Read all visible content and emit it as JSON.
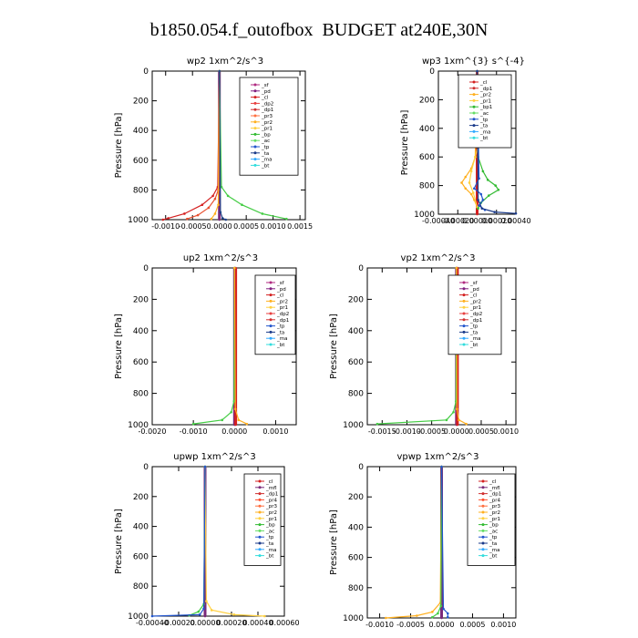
{
  "title": "b1850.054.f_outofbox  BUDGET at240E,30N",
  "chart_data": [
    {
      "type": "line",
      "title": "wp2   1xm^2/s^3",
      "ylabel": "Pressure [hPa]",
      "xlim": [
        -0.00125,
        0.0016
      ],
      "ylim": [
        1000,
        0
      ],
      "xticks": [
        -0.001,
        -0.0005,
        0,
        0.0005,
        0.001,
        0.0015
      ],
      "xticklabels": [
        "-0.0010",
        "-0.0005",
        "0.0000",
        "0.0005",
        "0.0010",
        "0.0015"
      ],
      "yticks": [
        0,
        200,
        400,
        600,
        800,
        1000
      ],
      "yticklabels": [
        "0",
        "200",
        "400",
        "600",
        "800",
        "1000"
      ],
      "legend": [
        "_sf",
        "_pd",
        "_cl",
        "_dp2",
        "_dp1",
        "_pr3",
        "_pr2",
        "_pr1",
        "_bp",
        "_ac",
        "_tp",
        "_ta",
        "_ma",
        "_bt"
      ],
      "series": [
        {
          "name": "_sf",
          "color": "#7a2a7a",
          "p": [
            0,
            1000
          ],
          "v": [
            0,
            0
          ]
        },
        {
          "name": "_cl",
          "color": "#d42020",
          "p": [
            0,
            780,
            840,
            900,
            960,
            990,
            1000
          ],
          "v": [
            0,
            -3e-05,
            -0.00012,
            -0.00032,
            -0.00065,
            -0.00095,
            -0.00105
          ]
        },
        {
          "name": "_dp2",
          "color": "#e85030",
          "p": [
            0,
            800,
            860,
            920,
            970,
            995
          ],
          "v": [
            0,
            -2e-05,
            -8e-05,
            -0.0002,
            -0.0004,
            -0.0006
          ]
        },
        {
          "name": "_pr1",
          "color": "#ffb020",
          "p": [
            0,
            900,
            960,
            995
          ],
          "v": [
            0,
            -2e-05,
            -8e-05,
            -0.00015
          ]
        },
        {
          "name": "_bp",
          "color": "#44cc44",
          "p": [
            0,
            780,
            840,
            900,
            960,
            995
          ],
          "v": [
            0,
            4e-05,
            0.00016,
            0.00042,
            0.0008,
            0.00125
          ]
        },
        {
          "name": "_ta",
          "color": "#224488",
          "p": [
            0,
            950,
            990,
            1000
          ],
          "v": [
            0,
            2e-05,
            6e-05,
            0.00012
          ]
        }
      ]
    },
    {
      "type": "line",
      "title": "wp3   1xm^{3} s^{-4}",
      "ylabel": "Pressure [hPa]",
      "xlim": [
        -0.0004,
        0.0004
      ],
      "ylim": [
        1000,
        0
      ],
      "xticks": [
        -0.0004,
        -0.0002,
        0,
        0.0002,
        0.0004
      ],
      "xticklabels": [
        "-0.00040",
        "-0.00020",
        "0.00000",
        "0.00020",
        "0.00040"
      ],
      "yticks": [
        0,
        200,
        400,
        600,
        800,
        1000
      ],
      "yticklabels": [
        "0",
        "200",
        "400",
        "600",
        "800",
        "1000"
      ],
      "legend": [
        "_cl",
        "_dp1",
        "_pr2",
        "_pr1",
        "_bp1",
        "_ac",
        "_tp",
        "_ta",
        "_ma",
        "_bt"
      ],
      "series": [
        {
          "name": "_cl",
          "color": "#d42020",
          "p": [
            0,
            1000
          ],
          "v": [
            0,
            0
          ]
        },
        {
          "name": "_pr1",
          "color": "#ffb020",
          "p": [
            0,
            600,
            680,
            740,
            780,
            820,
            860,
            900,
            950
          ],
          "v": [
            0,
            -2e-05,
            -6e-05,
            -0.00012,
            -0.00016,
            -0.00012,
            -6e-05,
            -3e-05,
            0
          ]
        },
        {
          "name": "_pr2",
          "color": "#ffd040",
          "p": [
            0,
            300,
            400,
            500,
            600,
            700,
            780,
            850,
            950
          ],
          "v": [
            0,
            2e-05,
            3e-05,
            2e-05,
            -2e-05,
            -6e-05,
            -8e-05,
            -4e-05,
            0
          ]
        },
        {
          "name": "_bp1",
          "color": "#33bb33",
          "p": [
            0,
            600,
            700,
            760,
            800,
            830,
            870,
            920,
            960
          ],
          "v": [
            0,
            1e-05,
            6e-05,
            0.00011,
            0.00019,
            0.00022,
            0.00012,
            4e-05,
            1e-05
          ]
        },
        {
          "name": "_tp",
          "color": "#2255cc",
          "p": [
            0,
            750,
            820,
            860,
            900,
            940,
            970
          ],
          "v": [
            0,
            2e-05,
            -3e-05,
            4e-05,
            6e-05,
            2e-05,
            8e-05
          ]
        },
        {
          "name": "_ta",
          "color": "#1a3a8a",
          "p": [
            0,
            900,
            960,
            985,
            995
          ],
          "v": [
            0,
            1e-05,
            5e-05,
            0.00018,
            0.0004
          ]
        }
      ]
    },
    {
      "type": "line",
      "title": "up2   1xm^2/s^3",
      "ylabel": "Pressure [hPa]",
      "xlim": [
        -0.002,
        0.0015
      ],
      "ylim": [
        1000,
        0
      ],
      "xticks": [
        -0.002,
        -0.001,
        0,
        0.001
      ],
      "xticklabels": [
        "-0.0020",
        "-0.0010",
        "0.0000",
        "0.0010"
      ],
      "yticks": [
        0,
        200,
        400,
        600,
        800,
        1000
      ],
      "yticklabels": [
        "0",
        "200",
        "400",
        "600",
        "800",
        "1000"
      ],
      "legend": [
        "_sf",
        "_pd",
        "_cl",
        "_pr2",
        "_pr1",
        "_dp2",
        "_dp1",
        "_tp",
        "_ta",
        "_ma",
        "_bt"
      ],
      "series": [
        {
          "name": "_sf",
          "color": "#7a2a7a",
          "p": [
            0,
            1000
          ],
          "v": [
            0,
            0
          ]
        },
        {
          "name": "_pd",
          "color": "#d42020",
          "p": [
            0,
            1000
          ],
          "v": [
            3e-05,
            3e-05
          ]
        },
        {
          "name": "_dp2",
          "color": "#44cc44",
          "p": [
            0,
            850,
            920,
            970,
            995
          ],
          "v": [
            0,
            -1e-05,
            -8e-05,
            -0.0003,
            -0.001
          ]
        },
        {
          "name": "_pr1",
          "color": "#ffb020",
          "p": [
            0,
            900,
            970,
            995
          ],
          "v": [
            0,
            2e-05,
            0.0001,
            0.0003
          ]
        }
      ]
    },
    {
      "type": "line",
      "title": "vp2   1xm^2/s^3",
      "ylabel": "Pressure [hPa]",
      "xlim": [
        -0.0018,
        0.0012
      ],
      "ylim": [
        1000,
        0
      ],
      "xticks": [
        -0.0015,
        -0.001,
        -0.0005,
        0,
        0.0005,
        0.001
      ],
      "xticklabels": [
        "-0.0015",
        "-0.0010",
        "-0.0005",
        "0.0000",
        "0.0005",
        "0.0010"
      ],
      "yticks": [
        0,
        200,
        400,
        600,
        800,
        1000
      ],
      "yticklabels": [
        "0",
        "200",
        "400",
        "600",
        "800",
        "1000"
      ],
      "legend": [
        "_sf",
        "_pd",
        "_cl",
        "_pr2",
        "_pr1",
        "_dp2",
        "_dp1",
        "_tp",
        "_ta",
        "_ma",
        "_bt"
      ],
      "series": [
        {
          "name": "_sf",
          "color": "#7a2a7a",
          "p": [
            0,
            1000
          ],
          "v": [
            0,
            0
          ]
        },
        {
          "name": "_pd",
          "color": "#d42020",
          "p": [
            0,
            1000
          ],
          "v": [
            2e-05,
            2e-05
          ]
        },
        {
          "name": "_dp2",
          "color": "#44cc44",
          "p": [
            0,
            850,
            920,
            970,
            995
          ],
          "v": [
            0,
            -1e-05,
            -6e-05,
            -0.0002,
            -0.0016
          ]
        },
        {
          "name": "_pr1",
          "color": "#ffb020",
          "p": [
            0,
            900,
            970,
            995
          ],
          "v": [
            0,
            1e-05,
            5e-05,
            0.0002
          ]
        }
      ]
    },
    {
      "type": "line",
      "title": "upwp   1xm^2/s^3",
      "ylabel": "Pressure [hPa]",
      "xlim": [
        -0.0004,
        0.0006
      ],
      "ylim": [
        1000,
        0
      ],
      "xticks": [
        -0.0004,
        -0.0002,
        0,
        0.0002,
        0.0004,
        0.0006
      ],
      "xticklabels": [
        "-0.00040",
        "-0.00020",
        "0.00000",
        "0.00020",
        "0.00040",
        "0.00060"
      ],
      "yticks": [
        0,
        200,
        400,
        600,
        800,
        1000
      ],
      "yticklabels": [
        "0",
        "200",
        "400",
        "600",
        "800",
        "1000"
      ],
      "legend": [
        "_cl",
        "_mfl",
        "_dp1",
        "_pr4",
        "_pr3",
        "_pr2",
        "_pr1",
        "_bp",
        "_ac",
        "_tp",
        "_ta",
        "_ma",
        "_bt"
      ],
      "series": [
        {
          "name": "_cl",
          "color": "#7a2a7a",
          "p": [
            0,
            1000
          ],
          "v": [
            0,
            0
          ]
        },
        {
          "name": "_pr1",
          "color": "#ffd040",
          "p": [
            0,
            900,
            960,
            990,
            1000
          ],
          "v": [
            0,
            1e-05,
            5e-05,
            0.00022,
            0.00045
          ]
        },
        {
          "name": "_bp",
          "color": "#44cc44",
          "p": [
            0,
            920,
            970,
            995
          ],
          "v": [
            0,
            -1e-05,
            -5e-05,
            -0.00012
          ]
        },
        {
          "name": "_tp",
          "color": "#2255cc",
          "p": [
            0,
            950,
            990,
            1000
          ],
          "v": [
            0,
            -1e-05,
            -4e-05,
            -0.0004
          ]
        }
      ]
    },
    {
      "type": "line",
      "title": "vpwp   1xm^2/s^3",
      "ylabel": "Pressure [hPa]",
      "xlim": [
        -0.0012,
        0.0012
      ],
      "ylim": [
        1000,
        0
      ],
      "xticks": [
        -0.001,
        -0.0005,
        0,
        0.0005,
        0.001
      ],
      "xticklabels": [
        "-0.0010",
        "-0.0005",
        "0.0000",
        "0.0005",
        "0.0010"
      ],
      "yticks": [
        0,
        200,
        400,
        600,
        800,
        1000
      ],
      "yticklabels": [
        "0",
        "200",
        "400",
        "600",
        "800",
        "1000"
      ],
      "legend": [
        "_cl",
        "_mfl",
        "_dp1",
        "_pr4",
        "_pr3",
        "_pr2",
        "_pr1",
        "_bp",
        "_ac",
        "_tp",
        "_ta",
        "_ma",
        "_bt"
      ],
      "series": [
        {
          "name": "_cl",
          "color": "#7a2a7a",
          "p": [
            0,
            1000
          ],
          "v": [
            0,
            0
          ]
        },
        {
          "name": "_pr1",
          "color": "#ffb020",
          "p": [
            0,
            900,
            960,
            985,
            1000
          ],
          "v": [
            0,
            -2e-05,
            -0.00015,
            -0.0004,
            -0.0009
          ]
        },
        {
          "name": "_bp",
          "color": "#44cc44",
          "p": [
            0,
            920,
            970,
            995
          ],
          "v": [
            0,
            -1e-05,
            -6e-05,
            -0.00015
          ]
        },
        {
          "name": "_tp",
          "color": "#2255cc",
          "p": [
            0,
            940,
            970,
            995
          ],
          "v": [
            0,
            3e-05,
            0.0001,
            0.0001
          ]
        }
      ]
    }
  ],
  "legend_colors": {
    "_sf": "#b02a80",
    "_pd": "#802080",
    "_cl": "#d42020",
    "_mfl": "#7a2a7a",
    "_dp2": "#e84040",
    "_dp1": "#d03030",
    "_dp4": "#e05050",
    "_pr4": "#ff5030",
    "_pr3": "#ff7040",
    "_pr2": "#ffb020",
    "_pr1": "#ffd040",
    "_bp": "#33bb33",
    "_bp1": "#33bb33",
    "_ac": "#66dd66",
    "_tp": "#2255cc",
    "_ta": "#1a3a8a",
    "_ma": "#33aaff",
    "_bt": "#33dddd"
  }
}
